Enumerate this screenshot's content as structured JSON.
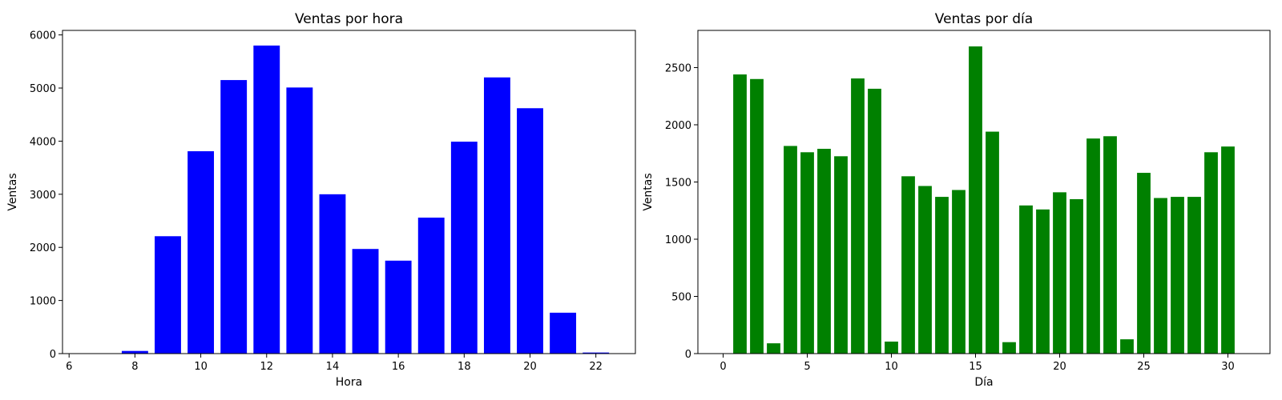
{
  "chart_data": [
    {
      "type": "bar",
      "title": "Ventas por hora",
      "xlabel": "Hora",
      "ylabel": "Ventas",
      "color": "#0000ff",
      "x": [
        7,
        8,
        9,
        10,
        11,
        12,
        13,
        14,
        15,
        16,
        17,
        18,
        19,
        20,
        21,
        22
      ],
      "values": [
        0,
        50,
        2210,
        3810,
        5150,
        5800,
        5010,
        3000,
        1970,
        1750,
        2560,
        3990,
        5200,
        4620,
        770,
        20
      ],
      "xlim": [
        5.8,
        23.2
      ],
      "ylim": [
        0,
        6085
      ],
      "xticks": [
        6,
        8,
        10,
        12,
        14,
        16,
        18,
        20,
        22
      ],
      "yticks": [
        0,
        1000,
        2000,
        3000,
        4000,
        5000,
        6000
      ],
      "grid": false,
      "legend": "none"
    },
    {
      "type": "bar",
      "title": "Ventas por día",
      "xlabel": "Día",
      "ylabel": "Ventas",
      "color": "#008000",
      "x": [
        1,
        2,
        3,
        4,
        5,
        6,
        7,
        8,
        9,
        10,
        11,
        12,
        13,
        14,
        15,
        16,
        17,
        18,
        19,
        20,
        21,
        22,
        23,
        24,
        25,
        26,
        27,
        28,
        29,
        30
      ],
      "values": [
        2440,
        2400,
        90,
        1815,
        1760,
        1790,
        1725,
        2405,
        2315,
        105,
        1550,
        1465,
        1370,
        1430,
        2685,
        1940,
        100,
        1295,
        1260,
        1410,
        1350,
        1880,
        1900,
        125,
        1580,
        1360,
        1370,
        1370,
        1760,
        1810
      ],
      "xlim": [
        -1.5,
        32.5
      ],
      "ylim": [
        0,
        2825
      ],
      "xticks": [
        0,
        5,
        10,
        15,
        20,
        25,
        30
      ],
      "yticks": [
        0,
        500,
        1000,
        1500,
        2000,
        2500
      ],
      "grid": false,
      "legend": "none"
    }
  ]
}
